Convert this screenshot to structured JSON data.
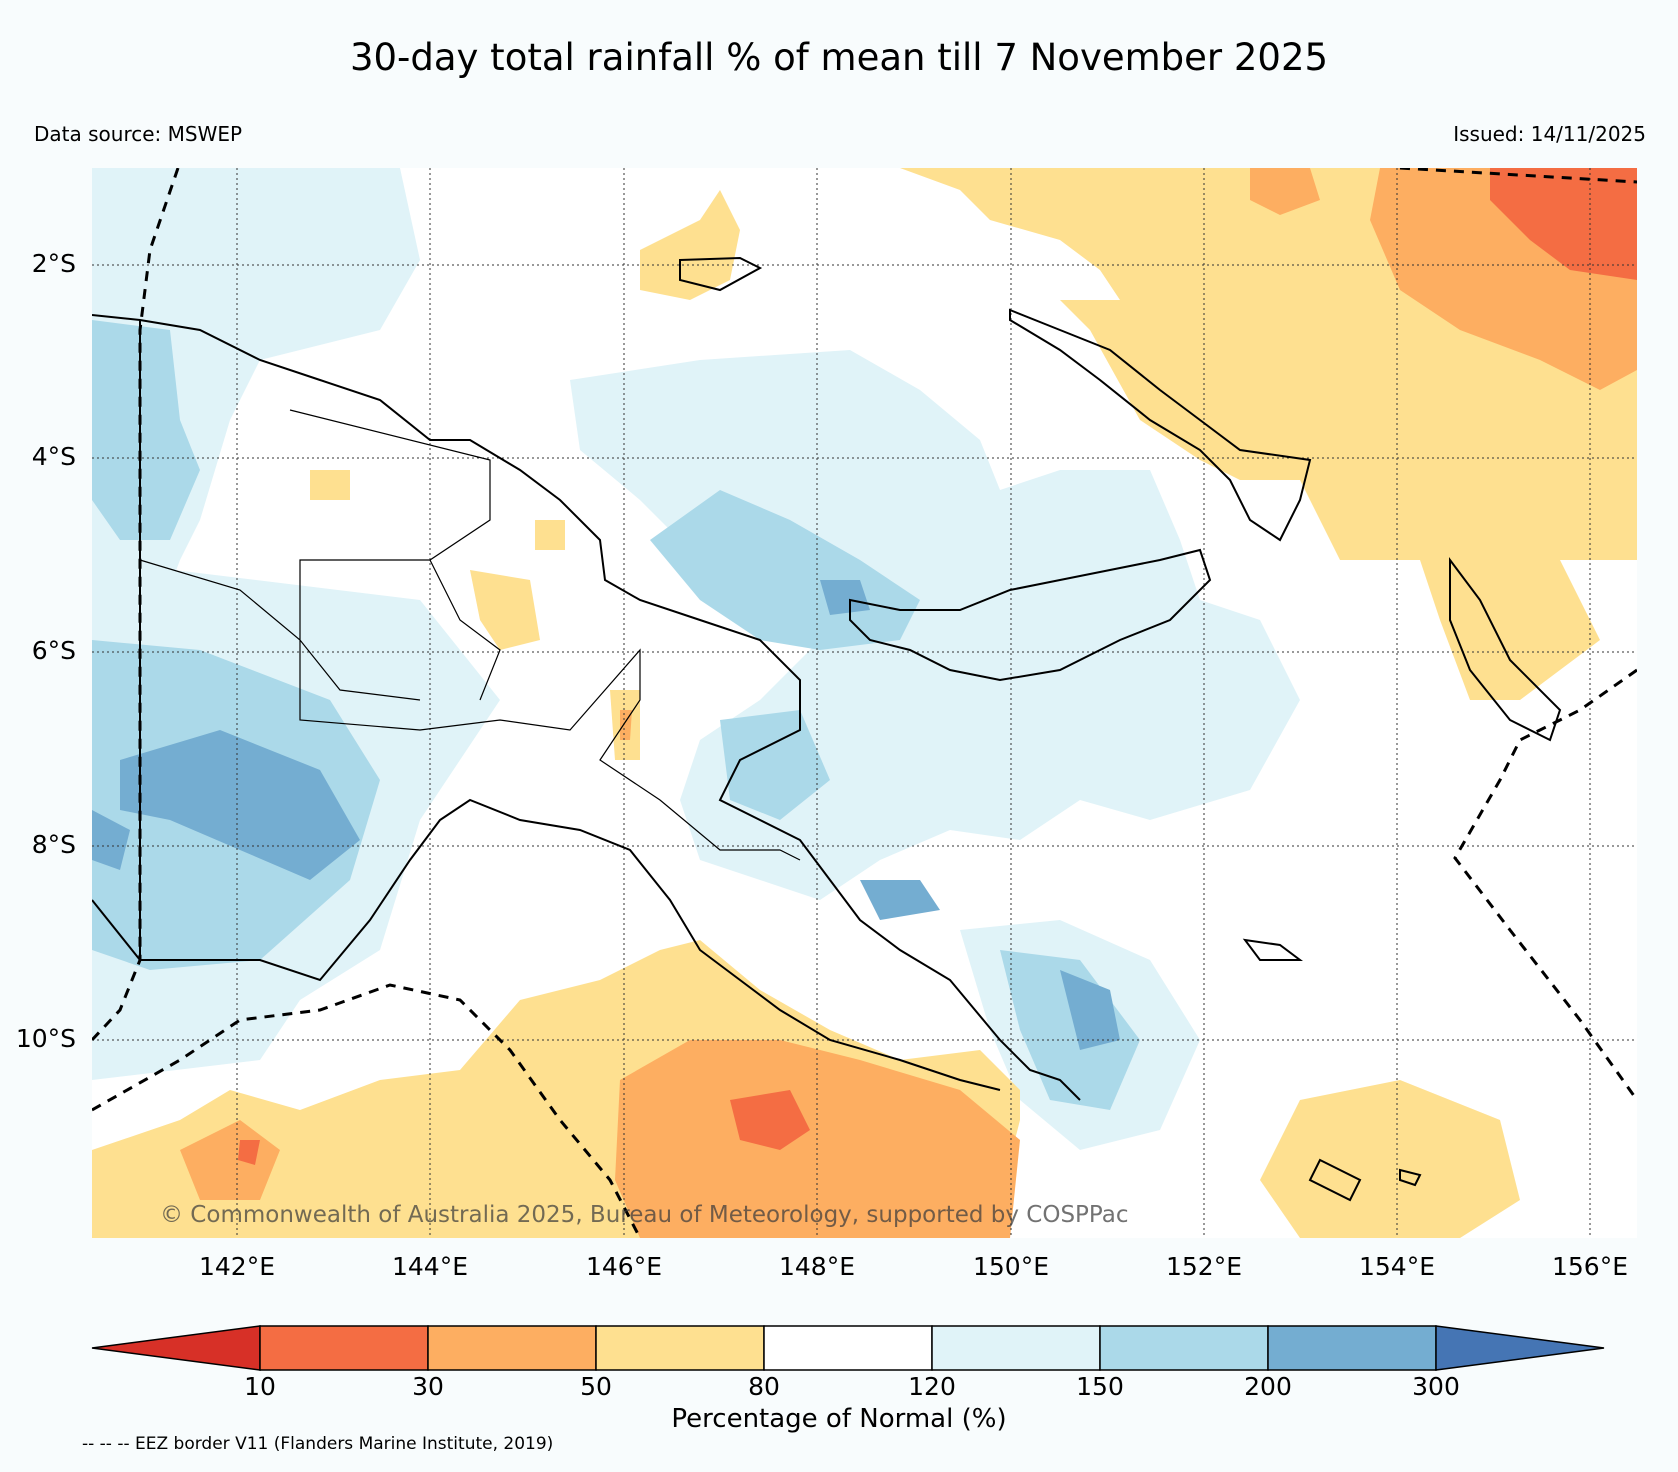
{
  "title": "30-day total rainfall % of mean till 7 November 2025",
  "data_source": "Data source: MSWEP",
  "issued": "Issued: 14/11/2025",
  "credit": "© Commonwealth of Australia 2025, Bureau of Meteorology, supported by COSPPac",
  "latitude_labels": [
    "2°S",
    "4°S",
    "6°S",
    "8°S",
    "10°S"
  ],
  "longitude_labels": [
    "142°E",
    "144°E",
    "146°E",
    "148°E",
    "150°E",
    "152°E",
    "154°E",
    "156°E"
  ],
  "colorbar": {
    "title": "Percentage of Normal (%)",
    "ticks": [
      "10",
      "30",
      "50",
      "80",
      "120",
      "150",
      "200",
      "300"
    ],
    "colors": [
      "#d73027",
      "#f46d43",
      "#fdae61",
      "#fee090",
      "#ffffff",
      "#e0f3f8",
      "#abd9e9",
      "#74add1",
      "#4575b4"
    ]
  },
  "eez_note": "-- -- -- EEZ border V11 (Flanders Marine Institute, 2019)",
  "palette": {
    "background": "#f8fcfd",
    "coast": "#000000",
    "grid": "#333333"
  }
}
